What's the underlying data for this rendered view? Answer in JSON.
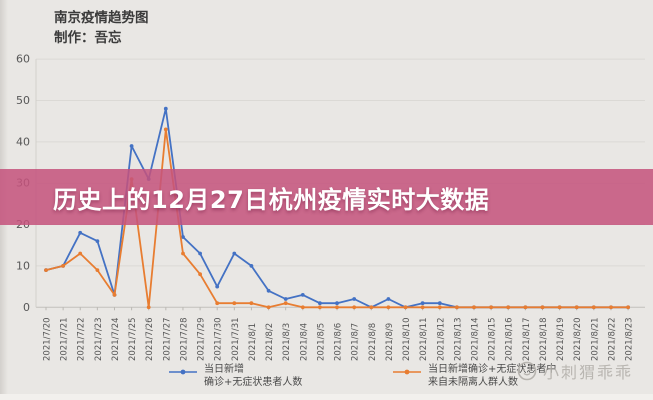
{
  "header": {
    "title": "南京疫情趋势图",
    "credit": "制作：吾忘"
  },
  "overlay_banner": {
    "text": "历史上的12月27日杭州疫情实时大数据",
    "bg_color": "#c5537d",
    "text_color": "#ffffff"
  },
  "legend": {
    "series1": {
      "line1": "当日新增",
      "line2": "确诊+无症状患者人数"
    },
    "series2": {
      "line1": "当日新增确诊+无症状患者中",
      "line2": "来自未隔离人群人数"
    }
  },
  "watermark": {
    "logo": "smiley-circle-logo",
    "text": "小刺猬乖乖"
  },
  "chart_data": {
    "type": "line",
    "title": "南京疫情趋势图",
    "xlabel": "",
    "ylabel": "",
    "ylim": [
      0,
      60
    ],
    "yticks": [
      0,
      10,
      20,
      30,
      40,
      50,
      60
    ],
    "grid": true,
    "legend_position": "bottom",
    "x": [
      "2021/7/20",
      "2021/7/21",
      "2021/7/22",
      "2021/7/23",
      "2021/7/24",
      "2021/7/25",
      "2021/7/26",
      "2021/7/27",
      "2021/7/28",
      "2021/7/29",
      "2021/7/30",
      "2021/7/31",
      "2021/8/1",
      "2021/8/2",
      "2021/8/3",
      "2021/8/4",
      "2021/8/5",
      "2021/8/6",
      "2021/8/7",
      "2021/8/8",
      "2021/8/9",
      "2021/8/10",
      "2021/8/11",
      "2021/8/12",
      "2021/8/13",
      "2021/8/14",
      "2021/8/15",
      "2021/8/16",
      "2021/8/17",
      "2021/8/18",
      "2021/8/19",
      "2021/8/20",
      "2021/8/21",
      "2021/8/22",
      "2021/8/23"
    ],
    "series": [
      {
        "name": "当日新增 确诊+无症状患者人数",
        "color": "#4472c4",
        "values": [
          9,
          10,
          18,
          16,
          3,
          39,
          31,
          48,
          17,
          13,
          5,
          13,
          10,
          4,
          2,
          3,
          1,
          1,
          2,
          0,
          2,
          0,
          1,
          1,
          0,
          0,
          0,
          0,
          0,
          0,
          0,
          0,
          0,
          0,
          0
        ]
      },
      {
        "name": "当日新增确诊+无症状患者中 来自未隔离人群人数",
        "color": "#e87d31",
        "values": [
          9,
          10,
          13,
          9,
          3,
          31,
          0,
          43,
          13,
          8,
          1,
          1,
          1,
          0,
          1,
          0,
          0,
          0,
          0,
          0,
          0,
          0,
          0,
          0,
          0,
          0,
          0,
          0,
          0,
          0,
          0,
          0,
          0,
          0,
          0
        ]
      }
    ]
  }
}
